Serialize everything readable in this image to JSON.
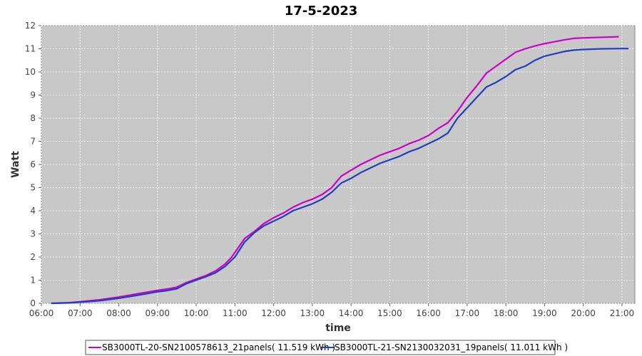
{
  "chart_data": {
    "type": "line",
    "title": "17-5-2023",
    "xlabel": "time",
    "ylabel": "Watt",
    "xlim": [
      "06:00",
      "21:20"
    ],
    "ylim": [
      0,
      12
    ],
    "x_ticks": [
      "06:00",
      "07:00",
      "08:00",
      "09:00",
      "10:00",
      "11:00",
      "12:00",
      "13:00",
      "14:00",
      "15:00",
      "16:00",
      "17:00",
      "18:00",
      "19:00",
      "20:00",
      "21:00"
    ],
    "y_ticks": [
      0,
      1,
      2,
      3,
      4,
      5,
      6,
      7,
      8,
      9,
      10,
      11,
      12
    ],
    "grid": true,
    "legend_position": "bottom",
    "series": [
      {
        "name": "SB3000TL-20-SN2100578613_21panels( 11.519 kWh )",
        "color": "#cc00cc",
        "x": [
          "06:15",
          "06:45",
          "07:00",
          "07:30",
          "08:00",
          "08:30",
          "09:00",
          "09:15",
          "09:30",
          "09:45",
          "10:00",
          "10:15",
          "10:30",
          "10:45",
          "10:55",
          "11:15",
          "11:30",
          "11:45",
          "12:00",
          "12:15",
          "12:30",
          "12:45",
          "13:00",
          "13:15",
          "13:30",
          "13:45",
          "14:00",
          "14:15",
          "14:30",
          "14:45",
          "15:00",
          "15:15",
          "15:30",
          "15:45",
          "16:00",
          "16:15",
          "16:30",
          "16:45",
          "17:00",
          "17:15",
          "17:30",
          "17:45",
          "18:00",
          "18:15",
          "18:30",
          "18:45",
          "19:00",
          "19:15",
          "19:30",
          "19:45",
          "20:00",
          "20:30",
          "20:55"
        ],
        "y": [
          0,
          0.03,
          0.07,
          0.15,
          0.27,
          0.42,
          0.56,
          0.62,
          0.7,
          0.9,
          1.05,
          1.2,
          1.4,
          1.7,
          2.0,
          2.8,
          3.1,
          3.45,
          3.7,
          3.9,
          4.15,
          4.35,
          4.5,
          4.7,
          5.0,
          5.5,
          5.75,
          6.0,
          6.2,
          6.4,
          6.55,
          6.7,
          6.9,
          7.05,
          7.25,
          7.55,
          7.8,
          8.3,
          8.9,
          9.4,
          9.95,
          10.25,
          10.55,
          10.85,
          11.0,
          11.12,
          11.22,
          11.3,
          11.38,
          11.45,
          11.47,
          11.5,
          11.52
        ]
      },
      {
        "name": "SB3000TL-21-SN2130032031_19panels( 11.011 kWh )",
        "color": "#1f3fbf",
        "x": [
          "06:15",
          "06:45",
          "07:00",
          "07:30",
          "08:00",
          "08:30",
          "09:00",
          "09:15",
          "09:30",
          "09:45",
          "10:00",
          "10:15",
          "10:30",
          "10:45",
          "11:00",
          "11:15",
          "11:30",
          "11:45",
          "12:00",
          "12:15",
          "12:30",
          "12:45",
          "13:00",
          "13:15",
          "13:30",
          "13:45",
          "14:00",
          "14:15",
          "14:30",
          "14:45",
          "15:00",
          "15:15",
          "15:30",
          "15:45",
          "16:00",
          "16:15",
          "16:30",
          "16:45",
          "17:00",
          "17:15",
          "17:30",
          "17:45",
          "18:00",
          "18:15",
          "18:30",
          "18:45",
          "19:00",
          "19:15",
          "19:30",
          "19:45",
          "20:00",
          "20:30",
          "21:00",
          "21:10"
        ],
        "y": [
          0,
          0.02,
          0.05,
          0.11,
          0.22,
          0.35,
          0.5,
          0.55,
          0.63,
          0.85,
          1.0,
          1.15,
          1.32,
          1.6,
          2.0,
          2.65,
          3.05,
          3.35,
          3.55,
          3.75,
          4.0,
          4.15,
          4.3,
          4.5,
          4.8,
          5.2,
          5.4,
          5.65,
          5.85,
          6.05,
          6.2,
          6.35,
          6.55,
          6.7,
          6.9,
          7.1,
          7.35,
          8.0,
          8.45,
          8.9,
          9.35,
          9.55,
          9.8,
          10.1,
          10.25,
          10.5,
          10.68,
          10.78,
          10.88,
          10.94,
          10.97,
          11.0,
          11.01,
          11.01
        ]
      }
    ]
  }
}
